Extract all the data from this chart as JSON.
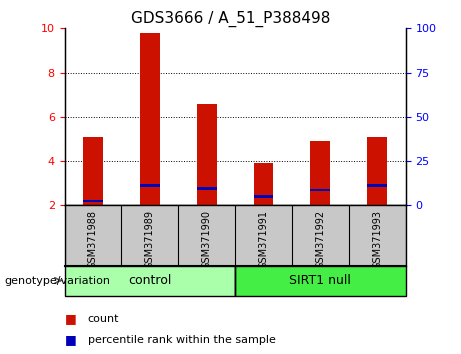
{
  "title": "GDS3666 / A_51_P388498",
  "samples": [
    "GSM371988",
    "GSM371989",
    "GSM371990",
    "GSM371991",
    "GSM371992",
    "GSM371993"
  ],
  "red_values": [
    5.1,
    9.8,
    6.6,
    3.9,
    4.9,
    5.1
  ],
  "blue_values": [
    2.2,
    2.9,
    2.75,
    2.4,
    2.7,
    2.9
  ],
  "y_min": 2.0,
  "y_max": 10.0,
  "y_ticks_left": [
    2,
    4,
    6,
    8,
    10
  ],
  "y_ticks_right": [
    0,
    25,
    50,
    75,
    100
  ],
  "groups": [
    {
      "label": "control",
      "indices": [
        0,
        1,
        2
      ],
      "color": "#AAFFAA"
    },
    {
      "label": "SIRT1 null",
      "indices": [
        3,
        4,
        5
      ],
      "color": "#44EE44"
    }
  ],
  "genotype_label": "genotype/variation",
  "legend_red_label": "count",
  "legend_blue_label": "percentile rank within the sample",
  "red_color": "#CC1100",
  "blue_color": "#0000BB",
  "bar_width": 0.35,
  "bg_color": "#FFFFFF",
  "tick_area_color": "#C8C8C8",
  "title_fontsize": 11,
  "tick_fontsize": 8,
  "sample_fontsize": 7,
  "group_fontsize": 9,
  "legend_fontsize": 8,
  "genotype_fontsize": 8,
  "grid_ticks": [
    4,
    6,
    8
  ]
}
